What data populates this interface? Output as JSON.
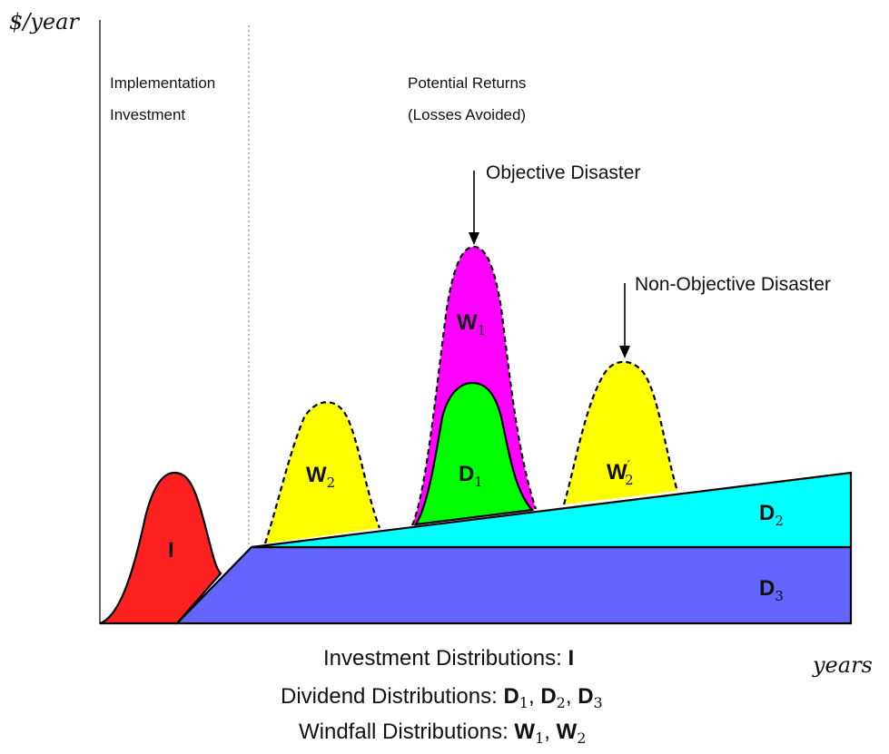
{
  "axes": {
    "y_label": "$/year",
    "x_label": "years"
  },
  "phases": {
    "implementation": [
      "Implementation",
      "Investment"
    ],
    "returns": [
      "Potential Returns",
      "(Losses Avoided)"
    ]
  },
  "callouts": {
    "objective": "Objective Disaster",
    "non_objective": "Non-Objective Disaster"
  },
  "regions": {
    "I": "I",
    "W1": {
      "base": "W",
      "sub": "1"
    },
    "W2": {
      "base": "W",
      "sub": "2"
    },
    "W2p": {
      "base": "W",
      "sub": "2",
      "prime": "′"
    },
    "D1": {
      "base": "D",
      "sub": "1"
    },
    "D2": {
      "base": "D",
      "sub": "2"
    },
    "D3": {
      "base": "D",
      "sub": "3"
    }
  },
  "legend": {
    "investment": {
      "label": "Investment Distributions: ",
      "items": "I"
    },
    "dividend": {
      "label": "Dividend Distributions: ",
      "d": "D",
      "s1": "1",
      "s2": "2",
      "s3": "3",
      "sep": ", "
    },
    "windfall": {
      "label": "Windfall Distributions: ",
      "w": "W",
      "s1": "1",
      "s2": "2",
      "sep": ", "
    }
  },
  "colors": {
    "investment": "#ff2020",
    "d3": "#6464ff",
    "d2": "#00ffff",
    "d1": "#00ff00",
    "w1": "#ff00ff",
    "w2": "#ffff00"
  }
}
